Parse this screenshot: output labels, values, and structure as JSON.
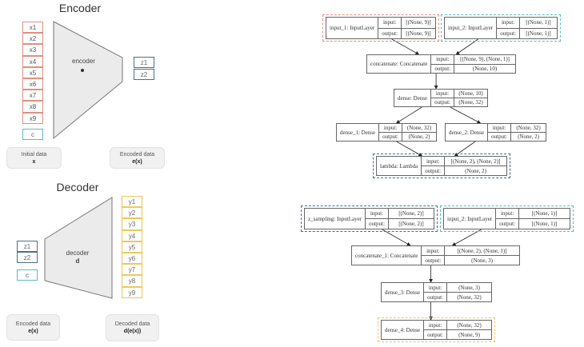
{
  "encoder": {
    "title": "Encoder",
    "inputs": [
      "x1",
      "x2",
      "x3",
      "x4",
      "x5",
      "x6",
      "x7",
      "x8",
      "x9"
    ],
    "condition": "c",
    "block_label": "encoder",
    "block_symbol": "e",
    "outputs": [
      "z1",
      "z2"
    ],
    "initial_label": "Initial data",
    "initial_symbol": "x",
    "encoded_label": "Encoded data",
    "encoded_symbol": "e(x)"
  },
  "decoder": {
    "title": "Decoder",
    "inputs": [
      "z1",
      "z2"
    ],
    "condition": "c",
    "block_label": "decoder",
    "block_symbol": "d",
    "outputs": [
      "y1",
      "y2",
      "y3",
      "y4",
      "y5",
      "y6",
      "y7",
      "y8",
      "y9"
    ],
    "encoded_label": "Encoded data",
    "encoded_symbol": "e(x)",
    "decoded_label": "Decoded data",
    "decoded_symbol": "d(e(x))"
  },
  "colors": {
    "input": "#e0907f",
    "condition": "#5bbcc0",
    "latent": "#4d6f8f",
    "output": "#edc85a"
  },
  "encoder_graph": [
    {
      "name": "input_1: InputLayer",
      "input": "[(None, 9)]",
      "output": "[(None, 9)]",
      "highlight": "#e0907f"
    },
    {
      "name": "input_2: InputLayer",
      "input": "[(None, 1)]",
      "output": "[(None, 1)]",
      "highlight": "#5bbcc0"
    },
    {
      "name": "concatenate: Concatenate",
      "input": "[(None, 9), (None, 1)]",
      "output": "(None, 10)"
    },
    {
      "name": "dense: Dense",
      "input": "(None, 10)",
      "output": "(None, 32)"
    },
    {
      "name": "dense_1: Dense",
      "input": "(None, 32)",
      "output": "(None, 2)"
    },
    {
      "name": "dense_2: Dense",
      "input": "(None, 32)",
      "output": "(None, 2)"
    },
    {
      "name": "lambda: Lambda",
      "input": "[(None, 2), (None, 2)]",
      "output": "(None, 2)",
      "highlight": "#4d6f8f"
    }
  ],
  "decoder_graph": [
    {
      "name": "z_sampling: InputLayer",
      "input": "[(None, 2)]",
      "output": "[(None, 2)]",
      "highlight": "#4d6f8f"
    },
    {
      "name": "input_2: InputLayer",
      "input": "[(None, 1)]",
      "output": "[(None, 1)]",
      "highlight": "#5bbcc0"
    },
    {
      "name": "concatenate_1: Concatenate",
      "input": "[(None, 2), (None, 1)]",
      "output": "(None, 3)"
    },
    {
      "name": "dense_3: Dense",
      "input": "(None, 3)",
      "output": "(None, 32)"
    },
    {
      "name": "dense_4: Dense",
      "input": "(None, 32)",
      "output": "(None, 9)",
      "highlight": "#edc85a"
    }
  ],
  "port_labels": {
    "input": "input:",
    "output": "output:"
  }
}
